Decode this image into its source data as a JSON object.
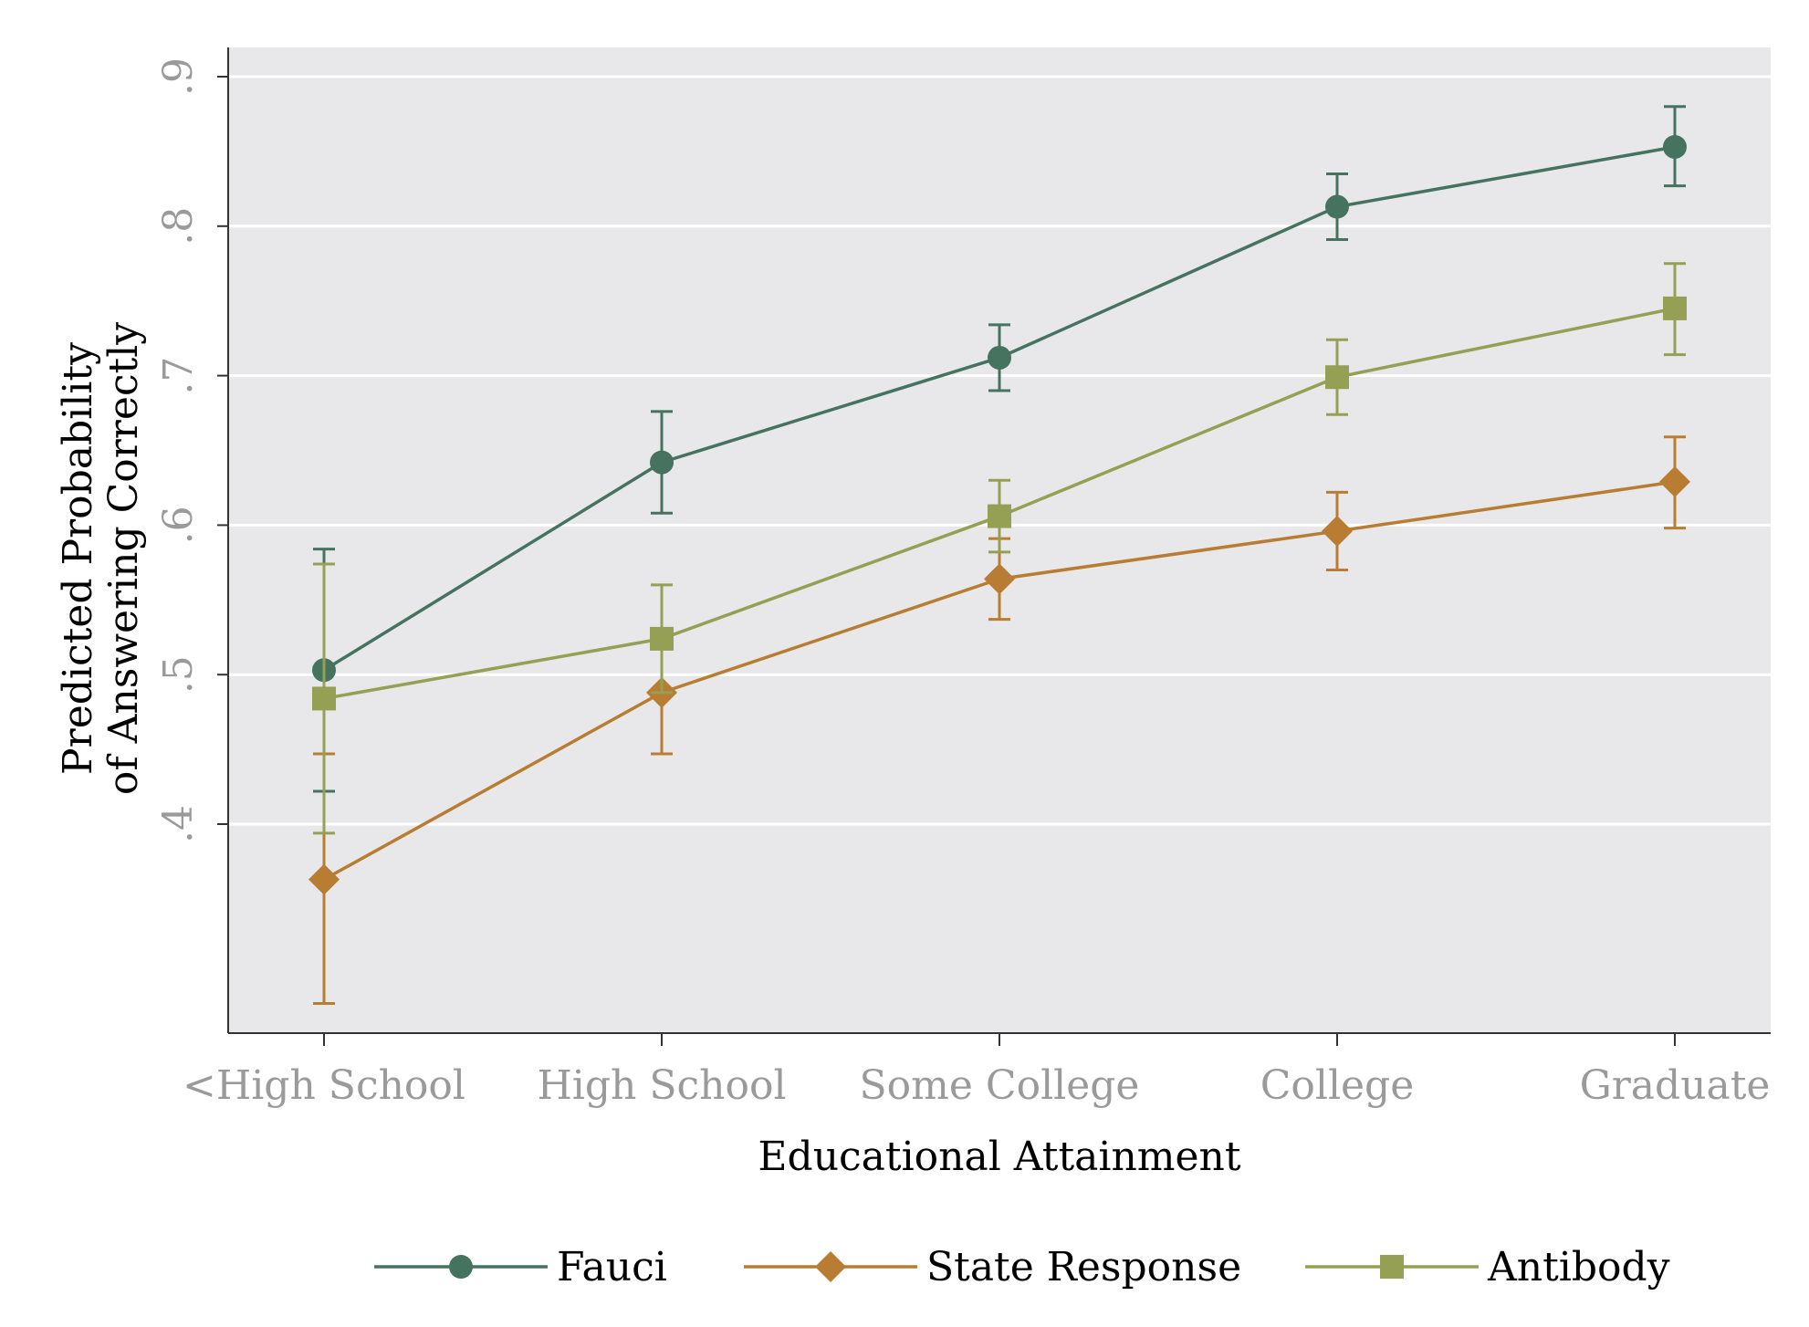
{
  "chart_data": {
    "type": "line",
    "title": "",
    "xlabel": "Educational Attainment",
    "ylabel_lines": [
      "Predicted Probability",
      "of Answering Correctly"
    ],
    "categories": [
      "<High School",
      "High School",
      "Some College",
      "College",
      "Graduate"
    ],
    "ylim": [
      0.26,
      0.92
    ],
    "yticks": [
      0.4,
      0.5,
      0.6,
      0.7,
      0.8,
      0.9
    ],
    "ytick_labels": [
      ".4",
      ".5",
      ".6",
      ".7",
      ".8",
      ".9"
    ],
    "grid": "horizontal",
    "legend_position": "bottom",
    "error_bars": true,
    "series": [
      {
        "name": "Fauci",
        "color": "#45735f",
        "marker": "circle",
        "values": [
          0.503,
          0.642,
          0.712,
          0.813,
          0.853
        ],
        "lower": [
          0.422,
          0.608,
          0.69,
          0.791,
          0.827
        ],
        "upper": [
          0.584,
          0.676,
          0.734,
          0.835,
          0.88
        ]
      },
      {
        "name": "State Response",
        "color": "#b87c32",
        "marker": "diamond",
        "values": [
          0.363,
          0.488,
          0.564,
          0.596,
          0.629
        ],
        "lower": [
          0.28,
          0.447,
          0.537,
          0.57,
          0.598
        ],
        "upper": [
          0.447,
          0.528,
          0.591,
          0.622,
          0.659
        ]
      },
      {
        "name": "Antibody",
        "color": "#95a054",
        "marker": "square",
        "values": [
          0.484,
          0.524,
          0.606,
          0.699,
          0.745
        ],
        "lower": [
          0.394,
          0.488,
          0.582,
          0.674,
          0.714
        ],
        "upper": [
          0.574,
          0.56,
          0.63,
          0.724,
          0.775
        ]
      }
    ]
  }
}
